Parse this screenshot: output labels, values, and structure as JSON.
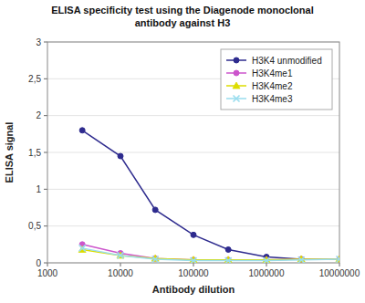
{
  "chart_data": {
    "type": "line",
    "title": "ELISA specificity test using the Diagenode monoclonal\nantibody against H3",
    "x_label": "Antibody dilution",
    "y_label": "ELISA signal",
    "x": [
      3000,
      10000,
      30000,
      100000,
      300000,
      1000000,
      3000000,
      10000000
    ],
    "series": [
      {
        "name": "H3K4 unmodified",
        "color": "#2E2B8E",
        "marker": "circle",
        "line_style": "solid",
        "values": [
          1.8,
          1.45,
          0.72,
          0.38,
          0.18,
          0.08,
          0.05,
          0.05
        ]
      },
      {
        "name": "H3K4me1",
        "color": "#CC55CC",
        "marker": "circle",
        "line_style": "solid",
        "values": [
          0.25,
          0.13,
          0.06,
          0.04,
          0.04,
          0.04,
          0.05,
          0.05
        ]
      },
      {
        "name": "H3K4me2",
        "color": "#DDDD00",
        "marker": "triangle",
        "line_style": "solid",
        "values": [
          0.18,
          0.1,
          0.06,
          0.04,
          0.04,
          0.04,
          0.05,
          0.05
        ]
      },
      {
        "name": "H3K4me3",
        "color": "#99DDEE",
        "marker": "x",
        "line_style": "solid",
        "values": [
          0.2,
          0.1,
          0.05,
          0.03,
          0.03,
          0.03,
          0.04,
          0.05
        ]
      }
    ],
    "log": "x",
    "xlim": [
      1000,
      10000000
    ],
    "xticks": [
      1000,
      10000,
      100000,
      1000000,
      10000000
    ],
    "ylim": [
      0,
      3
    ],
    "yticks": [
      0,
      {
        "value": 0.5,
        "label": "0,5"
      },
      1,
      {
        "value": 1.5,
        "label": "1,5"
      },
      2,
      {
        "value": 2.5,
        "label": "2,5"
      },
      3
    ],
    "grid": true,
    "legend": "upper right"
  }
}
